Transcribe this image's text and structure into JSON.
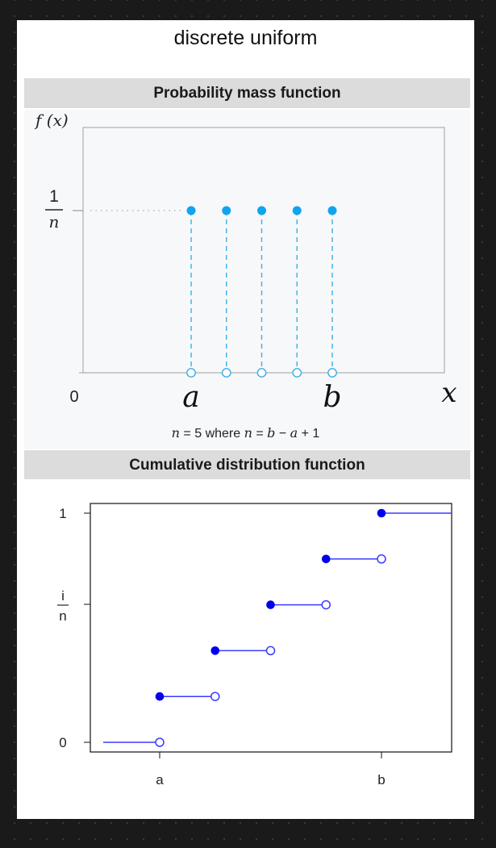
{
  "title": "discrete uniform",
  "pmf": {
    "header": "Probability mass function",
    "ylabel": "f (x)",
    "y_tick_numerator": "1",
    "y_tick_denominator": "n",
    "origin_label": "0",
    "a_label": "a",
    "b_label": "b",
    "x_label": "x",
    "caption": {
      "n_var": "n",
      "eq": " = 5 where ",
      "n_var2": "n",
      "eq2": " = ",
      "b_var": "b",
      "minus": " − ",
      "a_var": "a",
      "plus": " + 1"
    },
    "colors": {
      "stem": "#3daee9",
      "point": "#11a4ee",
      "frame": "#a0a0a0"
    }
  },
  "cdf": {
    "header": "Cumulative distribution function",
    "y_tick_top": "1",
    "y_tick_mid_numerator": "i",
    "y_tick_mid_denominator": "n",
    "y_tick_bottom": "0",
    "x_tick_a": "a",
    "x_tick_b": "b",
    "colors": {
      "line": "#3b3bff",
      "point": "#0000ee"
    }
  },
  "chart_data": [
    {
      "type": "scatter",
      "title": "Probability mass function",
      "ylabel": "f (x)",
      "xlabel": "x",
      "x": [
        1,
        2,
        3,
        4,
        5
      ],
      "y": [
        0.2,
        0.2,
        0.2,
        0.2,
        0.2
      ],
      "n": 5
    },
    {
      "type": "line",
      "title": "Cumulative distribution function",
      "x": [
        1,
        2,
        3,
        4,
        5
      ],
      "y": [
        0.2,
        0.4,
        0.6,
        0.8,
        1.0
      ],
      "xlim": [
        0,
        6
      ],
      "ylim": [
        0,
        1
      ]
    }
  ]
}
